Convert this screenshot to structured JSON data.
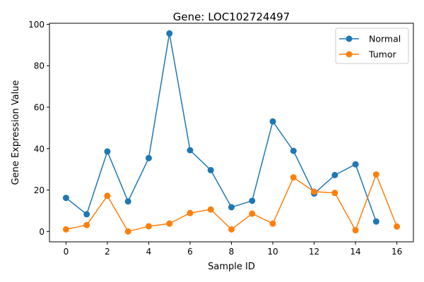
{
  "chart_data": {
    "type": "line",
    "title": "Gene: LOC102724497",
    "xlabel": "Sample ID",
    "ylabel": "Gene Expression Value",
    "xlim": [
      -0.8,
      16.8
    ],
    "ylim": [
      -5,
      100.5
    ],
    "xticks": [
      0,
      2,
      4,
      6,
      8,
      10,
      12,
      14,
      16
    ],
    "yticks": [
      0,
      20,
      40,
      60,
      80,
      100
    ],
    "grid": false,
    "legend_position": "top-right",
    "series": [
      {
        "name": "Normal",
        "color": "#1f77b4",
        "x": [
          0,
          1,
          2,
          3,
          4,
          5,
          6,
          7,
          8,
          9,
          10,
          11,
          12,
          13,
          14,
          15
        ],
        "values": [
          16.2,
          8.3,
          38.6,
          14.5,
          35.4,
          95.6,
          39.2,
          29.6,
          11.7,
          14.8,
          53.1,
          38.9,
          18.3,
          27.2,
          32.4,
          4.8
        ]
      },
      {
        "name": "Tumor",
        "color": "#ff7f0e",
        "x": [
          0,
          1,
          2,
          3,
          4,
          5,
          6,
          7,
          8,
          9,
          10,
          11,
          12,
          13,
          14,
          15,
          16
        ],
        "values": [
          1.0,
          3.1,
          17.2,
          0.0,
          2.5,
          3.8,
          8.9,
          10.6,
          1.0,
          8.6,
          3.8,
          26.1,
          19.2,
          18.6,
          0.6,
          27.5,
          2.4
        ]
      }
    ]
  }
}
